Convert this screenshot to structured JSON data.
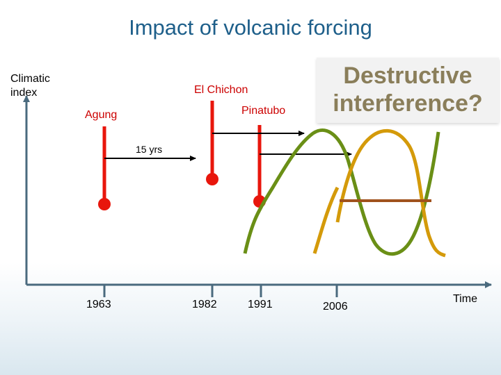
{
  "title": "Impact of volcanic forcing",
  "y_axis_label": "Climatic index",
  "x_axis_label": "Time",
  "eruptions": [
    {
      "name": "Agung",
      "year": "1963"
    },
    {
      "name": "El Chichon",
      "year": "1982"
    },
    {
      "name": "Pinatubo",
      "year": "1991"
    }
  ],
  "extra_tick": "2006",
  "duration_label": "15 yrs",
  "callout": "Destructive interference?",
  "colors": {
    "title": "#1e5f8a",
    "eruption": "#e8160c",
    "label": "#cc0000",
    "wave_green": "#6a8f16",
    "wave_gold": "#d49a0a",
    "midline": "#a0521d",
    "callout_text": "#8a7e5a"
  }
}
